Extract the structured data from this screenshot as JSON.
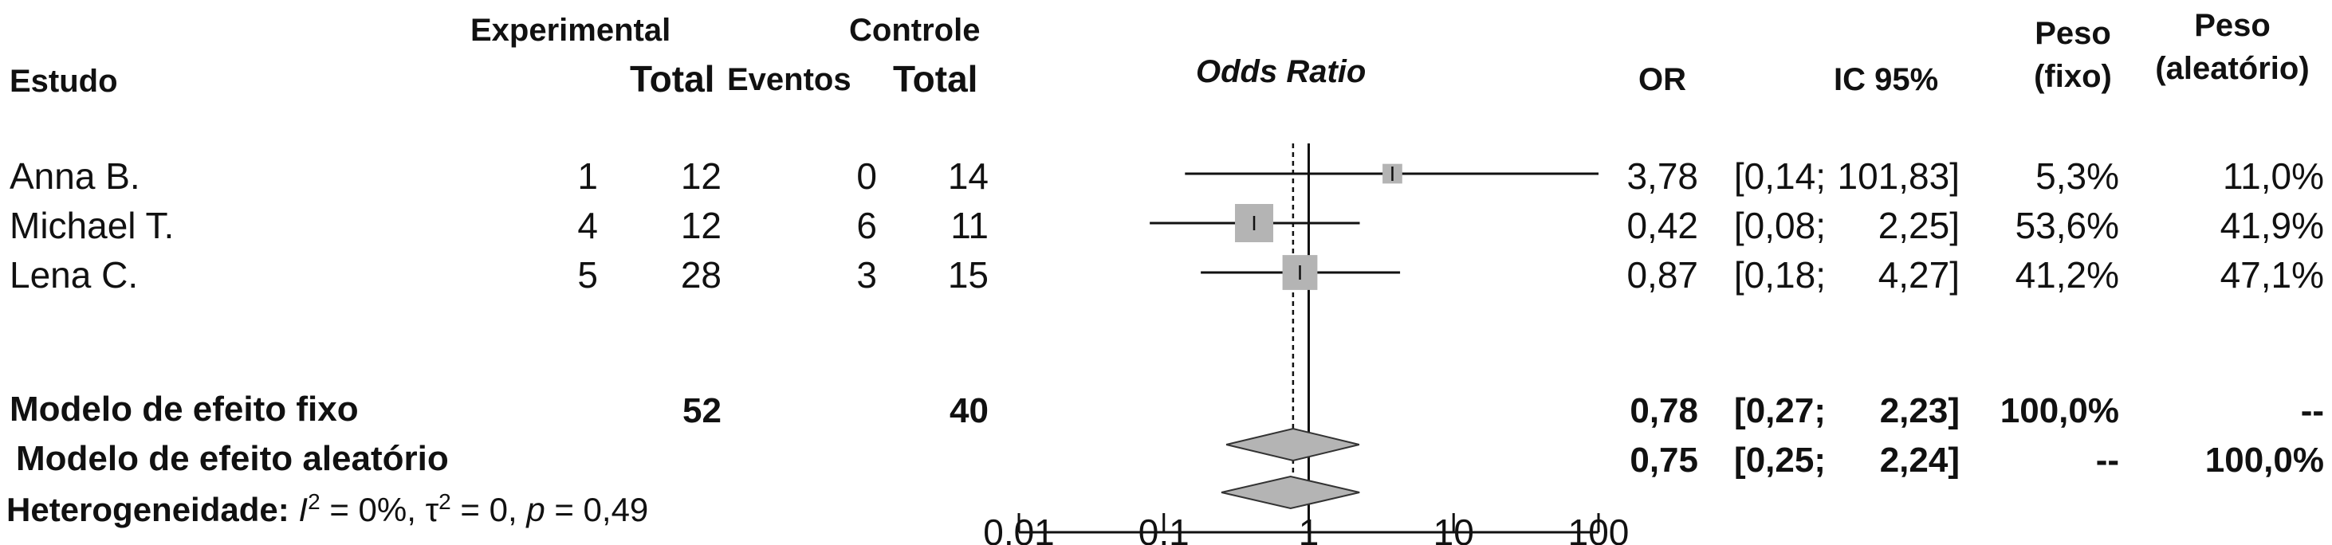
{
  "headers": {
    "study": "Estudo",
    "experimental": "Experimental",
    "controle": "Controle",
    "exp_total": "Total",
    "ctrl_events": "Eventos",
    "ctrl_total": "Total",
    "odds_ratio": "Odds Ratio",
    "or": "OR",
    "ci": "IC 95%",
    "weight_fixed_1": "Peso",
    "weight_fixed_2": "(fixo)",
    "weight_random_1": "Peso",
    "weight_random_2": "(aleatório)"
  },
  "studies": [
    {
      "name": "Anna B.",
      "exp_events": "1",
      "exp_total": "12",
      "ctrl_events": "0",
      "ctrl_total": "14",
      "or": "3,78",
      "ci_low": "[0,14;",
      "ci_high": "101,83]",
      "w_fixed": "5,3%",
      "w_random": "11,0%"
    },
    {
      "name": "Michael T.",
      "exp_events": "4",
      "exp_total": "12",
      "ctrl_events": "6",
      "ctrl_total": "11",
      "or": "0,42",
      "ci_low": "[0,08;",
      "ci_high": "2,25]",
      "w_fixed": "53,6%",
      "w_random": "41,9%"
    },
    {
      "name": "Lena C.",
      "exp_events": "5",
      "exp_total": "28",
      "ctrl_events": "3",
      "ctrl_total": "15",
      "or": "0,87",
      "ci_low": "[0,18;",
      "ci_high": "4,27]",
      "w_fixed": "41,2%",
      "w_random": "47,1%"
    }
  ],
  "fixed": {
    "label": "Modelo de efeito fixo",
    "exp_total": "52",
    "ctrl_total": "40",
    "or": "0,78",
    "ci_low": "[0,27;",
    "ci_high": "2,23]",
    "w_fixed": "100,0%",
    "w_random": "--"
  },
  "random": {
    "label": "Modelo de efeito aleatório",
    "or": "0,75",
    "ci_low": "[0,25;",
    "ci_high": "2,24]",
    "w_fixed": "--",
    "w_random": "100,0%"
  },
  "heterogeneity": {
    "prefix": "Heterogeneidade:",
    "i2_symbol": "I",
    "i2_sup": "2",
    "i2_value": " = 0%, ",
    "tau_symbol": "τ",
    "tau_sup": "2",
    "tau_value": " = 0, ",
    "p_symbol": "p",
    "p_value": " = 0,49"
  },
  "colors": {
    "box": "#b4b4b4",
    "diamond": "#b4b4b4",
    "line": "#111111"
  },
  "chart_data": {
    "type": "forest",
    "x_scale": "log",
    "xlim": [
      0.01,
      100
    ],
    "x_ticks": [
      0.01,
      0.1,
      1,
      10,
      100
    ],
    "x_tick_labels": [
      "0,01",
      "0,1",
      "1",
      "10",
      "100"
    ],
    "xlabel": "Odds Ratio",
    "null_value": 1,
    "studies": [
      {
        "name": "Anna B.",
        "or": 3.78,
        "ci": [
          0.14,
          101.83
        ],
        "weight_fixed": 5.3
      },
      {
        "name": "Michael T.",
        "or": 0.42,
        "ci": [
          0.08,
          2.25
        ],
        "weight_fixed": 53.6
      },
      {
        "name": "Lena C.",
        "or": 0.87,
        "ci": [
          0.18,
          4.27
        ],
        "weight_fixed": 41.2
      }
    ],
    "summaries": [
      {
        "name": "Modelo de efeito fixo",
        "or": 0.78,
        "ci": [
          0.27,
          2.23
        ]
      },
      {
        "name": "Modelo de efeito aleatório",
        "or": 0.75,
        "ci": [
          0.25,
          2.24
        ]
      }
    ]
  }
}
